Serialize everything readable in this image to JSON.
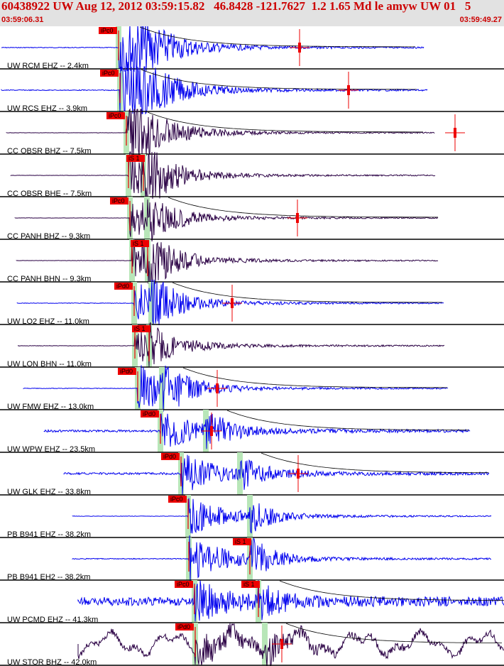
{
  "header": {
    "title": "60438922 UW Aug 12, 2012 03:59:15.82   46.8428 -121.7627  1.2 1.65 Md le amyw UW 01   5",
    "start_time": "03:59:06.31",
    "end_time": "03:59:49.27"
  },
  "colors": {
    "header_bg": "#e2e2e2",
    "header_text": "#cc0000",
    "trace_blue": "#0000ee",
    "trace_dark": "#2a0044",
    "pick": "#ee0000",
    "window": "#b8e6b8",
    "coda": "#000000"
  },
  "traces": [
    {
      "label": "UW RCM EHZ -- 2.4km",
      "pick": "iPc0",
      "pick2": "",
      "p": 167,
      "s": 0,
      "ls": 2,
      "le": 597,
      "color": "blue",
      "amp": 95,
      "mark": 422,
      "coda": true,
      "noise": 0.5
    },
    {
      "label": "UW RCS EHZ -- 3.9km",
      "pick": "iPc0",
      "pick2": "",
      "p": 169,
      "s": 0,
      "ls": 2,
      "le": 602,
      "color": "blue",
      "amp": 90,
      "mark": 491,
      "coda": true,
      "noise": 0.6
    },
    {
      "label": "CC OBSR BHZ -- 7.5km",
      "pick": "iPc0",
      "pick2": "",
      "p": 178,
      "s": 0,
      "ls": 9,
      "le": 612,
      "color": "dark",
      "amp": 60,
      "mark": 641,
      "coda": true,
      "noise": 0.2
    },
    {
      "label": "CC OBSR BHE -- 7.5km",
      "pick": "",
      "pick2": "iS 1",
      "p": 181,
      "s": 202,
      "ls": 15,
      "le": 613,
      "color": "dark",
      "amp": 40,
      "mark": 0,
      "coda": false,
      "noise": 0.2
    },
    {
      "label": "CC PANH BHZ -- 9.3km",
      "pick": "iPc0",
      "pick2": "",
      "p": 183,
      "s": 207,
      "ls": 21,
      "le": 617,
      "color": "dark",
      "amp": 30,
      "mark": 419,
      "coda": true,
      "noise": 0.2
    },
    {
      "label": "CC PANH BHN -- 9.3km",
      "pick": "",
      "pick2": "iS 1",
      "p": 186,
      "s": 208,
      "ls": 23,
      "le": 617,
      "color": "dark",
      "amp": 34,
      "mark": 0,
      "coda": false,
      "noise": 0.2
    },
    {
      "label": "UW LO2 EHZ -- 11.0km",
      "pick": "iPd0",
      "pick2": "",
      "p": 189,
      "s": 213,
      "ls": 24,
      "le": 625,
      "color": "blue",
      "amp": 32,
      "mark": 327,
      "coda": true,
      "noise": 0.4
    },
    {
      "label": "UW LON BHN -- 11.0km",
      "pick": "",
      "pick2": "iS 1",
      "p": 190,
      "s": 210,
      "ls": 25,
      "le": 626,
      "color": "dark",
      "amp": 24,
      "mark": 0,
      "coda": false,
      "noise": 0.3
    },
    {
      "label": "UW FMW EHZ -- 13.0km",
      "pick": "iPd0",
      "pick2": "",
      "p": 194,
      "s": 228,
      "ls": 33,
      "le": 631,
      "color": "blue",
      "amp": 36,
      "mark": 306,
      "coda": true,
      "noise": 0.4
    },
    {
      "label": "UW WPW EHZ -- 23.5km",
      "pick": "iPd0",
      "pick2": "",
      "p": 226,
      "s": 290,
      "ls": 62,
      "le": 662,
      "color": "blue",
      "amp": 30,
      "mark": 298,
      "coda": true,
      "noise": 1.5
    },
    {
      "label": "UW GLK EHZ -- 33.8km",
      "pick": "iPd0",
      "pick2": "",
      "p": 255,
      "s": 338,
      "ls": 90,
      "le": 689,
      "color": "blue",
      "amp": 28,
      "mark": 420,
      "coda": true,
      "noise": 1.5
    },
    {
      "label": "PB B941 EHZ -- 38.2km",
      "pick": "iPc0",
      "pick2": "",
      "p": 265,
      "s": 352,
      "ls": 102,
      "le": 692,
      "color": "blue",
      "amp": 28,
      "mark": 0,
      "coda": false,
      "noise": 0.3
    },
    {
      "label": "PB B941 EH2 -- 38.2km",
      "pick": "",
      "pick2": "iS 1",
      "p": 266,
      "s": 352,
      "ls": 102,
      "le": 692,
      "color": "blue",
      "amp": 34,
      "mark": 0,
      "coda": false,
      "noise": 0.6
    },
    {
      "label": "UW PCMD EHZ -- 41.3km",
      "pick": "iPc0",
      "pick2": "iS 1",
      "p": 274,
      "s": 364,
      "ls": 110,
      "le": 710,
      "color": "blue",
      "amp": 26,
      "mark": 0,
      "coda": true,
      "noise": 6
    },
    {
      "label": "UW STOR BHZ -- 42.0km",
      "pick": "iPd0",
      "pick2": "",
      "p": 275,
      "s": 373,
      "ls": 110,
      "le": 710,
      "color": "dark",
      "amp": 22,
      "mark": 397,
      "coda": true,
      "noise": 4,
      "wave": true
    }
  ]
}
